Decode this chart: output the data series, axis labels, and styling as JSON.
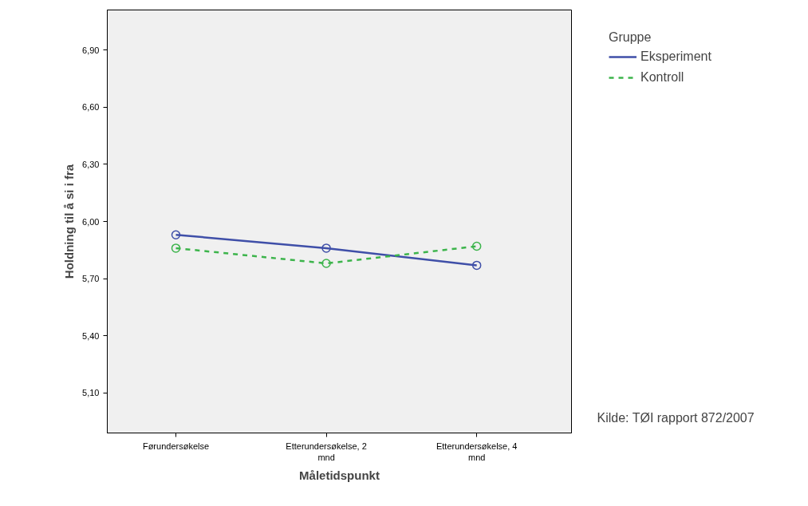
{
  "chart_data": {
    "type": "line",
    "xlabel": "Måletidspunkt",
    "ylabel": "Holdning til å si i fra",
    "legend_title": "Gruppe",
    "categories": [
      "Førundersøkelse",
      "Etterundersøkelse, 2 mnd",
      "Etterundersøkelse, 4 mnd"
    ],
    "series": [
      {
        "name": "Eksperiment",
        "color": "#3f4fa8",
        "values": [
          5.93,
          5.86,
          5.77
        ],
        "line_style": "solid"
      },
      {
        "name": "Kontroll",
        "color": "#3cb44b",
        "values": [
          5.86,
          5.78,
          5.87
        ],
        "line_style": "dashed"
      }
    ],
    "ylim": [
      4.89,
      7.11
    ],
    "yticks": [
      {
        "value": 5.1,
        "label": "5,10"
      },
      {
        "value": 5.4,
        "label": "5,40"
      },
      {
        "value": 5.7,
        "label": "5,70"
      },
      {
        "value": 6.0,
        "label": "6,00"
      },
      {
        "value": 6.3,
        "label": "6,30"
      },
      {
        "value": 6.6,
        "label": "6,60"
      },
      {
        "value": 6.9,
        "label": "6,90"
      }
    ],
    "marker": "circle",
    "grid": false,
    "legend": "top right",
    "annotations": [
      "Kilde: TØI rapport 872/2007"
    ]
  }
}
